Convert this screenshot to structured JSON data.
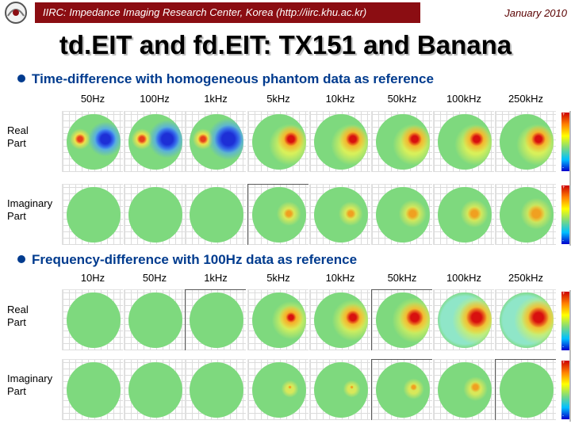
{
  "header": {
    "affiliation": "IIRC: Impedance Imaging Research Center, Korea (http://iirc.khu.ac.kr)",
    "date": "January 2010",
    "bar_color": "#8b0d12"
  },
  "title": "td.EIT and fd.EIT: TX151 and Banana",
  "sections": [
    {
      "heading": "Time-difference with homogeneous phantom data as reference",
      "frequencies": [
        "50Hz",
        "100Hz",
        "1kHz",
        "5kHz",
        "10kHz",
        "50kHz",
        "100kHz",
        "250kHz"
      ],
      "rows": [
        {
          "label": [
            "Real",
            "Part"
          ]
        },
        {
          "label": [
            "Imaginary",
            "Part"
          ]
        }
      ]
    },
    {
      "heading": "Frequency-difference with 100Hz data as reference",
      "frequencies": [
        "10Hz",
        "50Hz",
        "1kHz",
        "5kHz",
        "10kHz",
        "50kHz",
        "100kHz",
        "250kHz"
      ],
      "rows": [
        {
          "label": [
            "Real",
            "Part"
          ]
        },
        {
          "label": [
            "Imaginary",
            "Part"
          ]
        }
      ]
    }
  ],
  "colorbar": {
    "max_label": "+",
    "min_label": "-"
  },
  "colors": {
    "accent": "#003b8e",
    "background_field": "#7ed97e"
  }
}
